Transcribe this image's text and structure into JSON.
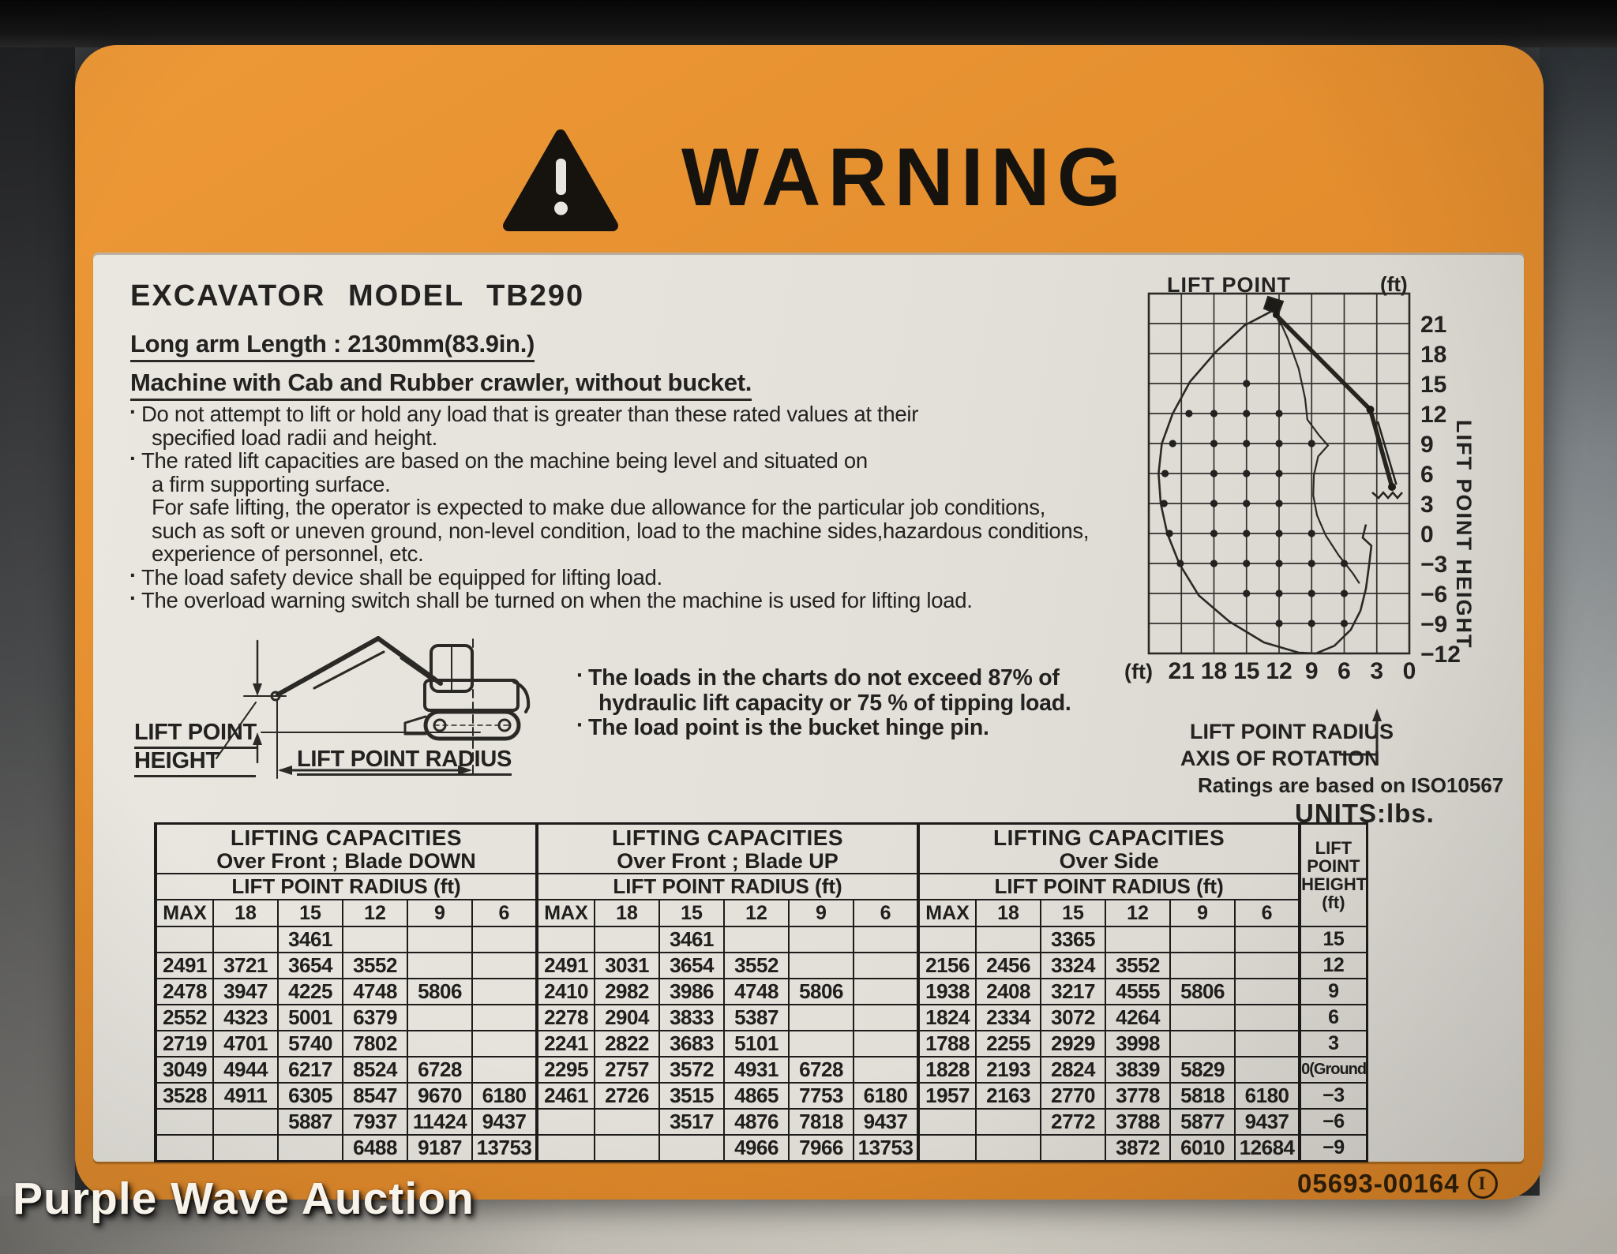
{
  "photo": {
    "watermark": "Purple Wave Auction"
  },
  "decal": {
    "header": {
      "title": "WARNING"
    },
    "model_heading": "EXCAVATOR MODEL TB290",
    "spec_lines": [
      "Long arm Length : 2130mm(83.9in.)",
      "Machine with Cab and Rubber crawler, without bucket."
    ],
    "bullet_char": "·",
    "notes": [
      {
        "bullet": true,
        "text": "Do not attempt to lift or hold any load that is greater than these rated values at their"
      },
      {
        "bullet": false,
        "text": "specified load radii and height."
      },
      {
        "bullet": true,
        "text": "The rated lift capacities are based on the machine being level and situated on"
      },
      {
        "bullet": false,
        "text": "a firm supporting surface."
      },
      {
        "bullet": false,
        "text": "For safe lifting, the operator is expected to make due allowance for the particular job conditions,"
      },
      {
        "bullet": false,
        "text": "such as soft or uneven ground, non-level condition, load to the machine sides,hazardous conditions,"
      },
      {
        "bullet": false,
        "text": "experience of personnel, etc."
      },
      {
        "bullet": true,
        "text": "The load safety device shall be equipped for lifting load."
      },
      {
        "bullet": true,
        "text": "The overload warning switch shall be turned on when the machine is used for lifting load."
      }
    ],
    "diagram_labels": {
      "height_line1": "LIFT POINT",
      "height_line2": "HEIGHT",
      "radius": "LIFT POINT RADIUS"
    },
    "load_notes": [
      {
        "bullet": true,
        "text": "The loads in the charts do not exceed 87% of"
      },
      {
        "bullet": false,
        "text": "hydraulic lift capacity or 75 % of tipping load."
      },
      {
        "bullet": true,
        "text": "The load point is the bucket hinge pin."
      }
    ],
    "footnotes": {
      "axis_label": "AXIS OF ROTATION",
      "iso_note": "Ratings are based on ISO10567",
      "units": "UNITS:lbs."
    },
    "part_number": "05693-00164",
    "part_mark": "I"
  },
  "chart_data": {
    "type": "scatter",
    "title": "LIFT POINT",
    "unit_label": "(ft)",
    "grid": true,
    "x_axis": {
      "label": "LIFT POINT RADIUS",
      "unit": "(ft)",
      "ticks": [
        21,
        18,
        15,
        12,
        9,
        6,
        3,
        0
      ],
      "range": [
        24,
        0
      ]
    },
    "y_axis": {
      "label": "LIFT POINT HEIGHT",
      "ticks": [
        21,
        18,
        15,
        12,
        9,
        6,
        3,
        0,
        -3,
        -6,
        -9,
        -12
      ],
      "range": [
        24,
        -12
      ]
    },
    "rated_points": [
      [
        15,
        15
      ],
      [
        18,
        12
      ],
      [
        15,
        12
      ],
      [
        12,
        12
      ],
      [
        18,
        9
      ],
      [
        15,
        9
      ],
      [
        12,
        9
      ],
      [
        9,
        9
      ],
      [
        18,
        6
      ],
      [
        15,
        6
      ],
      [
        12,
        6
      ],
      [
        18,
        3
      ],
      [
        15,
        3
      ],
      [
        12,
        3
      ],
      [
        18,
        0
      ],
      [
        15,
        0
      ],
      [
        12,
        0
      ],
      [
        9,
        0
      ],
      [
        18,
        -3
      ],
      [
        15,
        -3
      ],
      [
        12,
        -3
      ],
      [
        9,
        -3
      ],
      [
        6,
        -3
      ],
      [
        15,
        -6
      ],
      [
        12,
        -6
      ],
      [
        9,
        -6
      ],
      [
        6,
        -6
      ],
      [
        12,
        -9
      ],
      [
        9,
        -9
      ],
      [
        6,
        -9
      ]
    ],
    "max_reach_points": [
      [
        20.3,
        12
      ],
      [
        21.8,
        9
      ],
      [
        22.5,
        6
      ],
      [
        22.6,
        3
      ],
      [
        22.1,
        0
      ],
      [
        21.1,
        -3
      ]
    ]
  },
  "tables": {
    "radius_header": "LIFT POINT RADIUS  (ft)",
    "radius_cols": [
      "MAX",
      "18",
      "15",
      "12",
      "9",
      "6"
    ],
    "height_col": {
      "header_lines": [
        "LIFT",
        "POINT",
        "HEIGHT",
        "(ft)"
      ],
      "values": [
        "15",
        "12",
        "9",
        "6",
        "3",
        "0(Ground)",
        "−3",
        "−6",
        "−9"
      ]
    },
    "groups": [
      {
        "title": "LIFTING CAPACITIES",
        "subtitle": "Over Front ; Blade DOWN",
        "rows": [
          [
            "",
            "",
            "3461",
            "",
            "",
            ""
          ],
          [
            "2491",
            "3721",
            "3654",
            "3552",
            "",
            ""
          ],
          [
            "2478",
            "3947",
            "4225",
            "4748",
            "5806",
            ""
          ],
          [
            "2552",
            "4323",
            "5001",
            "6379",
            "",
            ""
          ],
          [
            "2719",
            "4701",
            "5740",
            "7802",
            "",
            ""
          ],
          [
            "3049",
            "4944",
            "6217",
            "8524",
            "6728",
            ""
          ],
          [
            "3528",
            "4911",
            "6305",
            "8547",
            "9670",
            "6180"
          ],
          [
            "",
            "",
            "5887",
            "7937",
            "11424",
            "9437"
          ],
          [
            "",
            "",
            "",
            "6488",
            "9187",
            "13753"
          ]
        ]
      },
      {
        "title": "LIFTING CAPACITIES",
        "subtitle": "Over Front ; Blade UP",
        "rows": [
          [
            "",
            "",
            "3461",
            "",
            "",
            ""
          ],
          [
            "2491",
            "3031",
            "3654",
            "3552",
            "",
            ""
          ],
          [
            "2410",
            "2982",
            "3986",
            "4748",
            "5806",
            ""
          ],
          [
            "2278",
            "2904",
            "3833",
            "5387",
            "",
            ""
          ],
          [
            "2241",
            "2822",
            "3683",
            "5101",
            "",
            ""
          ],
          [
            "2295",
            "2757",
            "3572",
            "4931",
            "6728",
            ""
          ],
          [
            "2461",
            "2726",
            "3515",
            "4865",
            "7753",
            "6180"
          ],
          [
            "",
            "",
            "3517",
            "4876",
            "7818",
            "9437"
          ],
          [
            "",
            "",
            "",
            "4966",
            "7966",
            "13753"
          ]
        ]
      },
      {
        "title": "LIFTING CAPACITIES",
        "subtitle": "Over Side",
        "rows": [
          [
            "",
            "",
            "3365",
            "",
            "",
            ""
          ],
          [
            "2156",
            "2456",
            "3324",
            "3552",
            "",
            ""
          ],
          [
            "1938",
            "2408",
            "3217",
            "4555",
            "5806",
            ""
          ],
          [
            "1824",
            "2334",
            "3072",
            "4264",
            "",
            ""
          ],
          [
            "1788",
            "2255",
            "2929",
            "3998",
            "",
            ""
          ],
          [
            "1828",
            "2193",
            "2824",
            "3839",
            "5829",
            ""
          ],
          [
            "1957",
            "2163",
            "2770",
            "3778",
            "5818",
            "6180"
          ],
          [
            "",
            "",
            "2772",
            "3788",
            "5877",
            "9437"
          ],
          [
            "",
            "",
            "",
            "3872",
            "6010",
            "12684"
          ]
        ]
      }
    ]
  }
}
